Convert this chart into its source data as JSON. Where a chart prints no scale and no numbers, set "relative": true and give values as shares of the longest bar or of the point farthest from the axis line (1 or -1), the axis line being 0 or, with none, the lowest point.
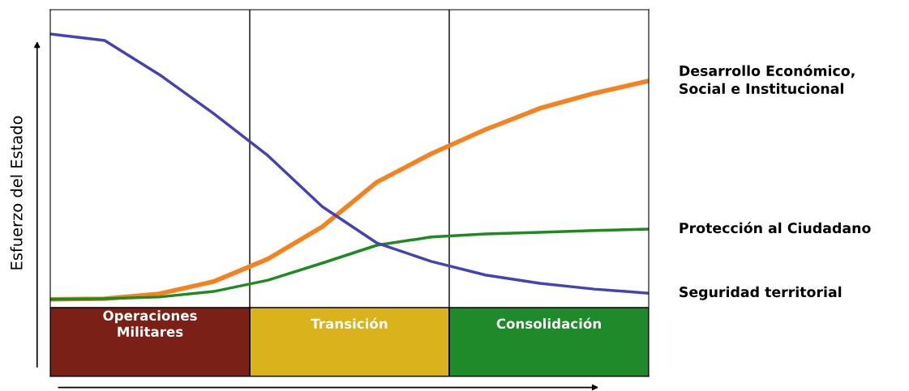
{
  "chart_data": {
    "type": "line",
    "relative": true,
    "ylabel": "Esfuerzo del Estado",
    "legend": false,
    "grid": false,
    "categories": [
      null,
      null,
      null,
      null,
      null,
      null,
      null,
      null,
      null,
      null,
      null,
      null
    ],
    "series": [
      {
        "name": "Desarrollo Económico,\nSocial e Institucional",
        "color": "#f5821f",
        "values": [
          0.225,
          0.227,
          0.241,
          0.277,
          0.343,
          0.437,
          0.567,
          0.65,
          0.721,
          0.783,
          0.827,
          0.863
        ]
      },
      {
        "name": "Protección al Ciudadano",
        "color": "#1f8a1f",
        "values": [
          0.225,
          0.227,
          0.232,
          0.248,
          0.281,
          0.331,
          0.383,
          0.407,
          0.416,
          0.421,
          0.426,
          0.43
        ]
      },
      {
        "name": "Seguridad territorial",
        "color": "#4343b8",
        "values": [
          1.0,
          0.981,
          0.882,
          0.768,
          0.645,
          0.496,
          0.39,
          0.336,
          0.296,
          0.272,
          0.255,
          0.243
        ]
      }
    ],
    "annotations": [
      "Operaciones\nMilitares",
      "Transición",
      "Consolidación"
    ]
  }
}
